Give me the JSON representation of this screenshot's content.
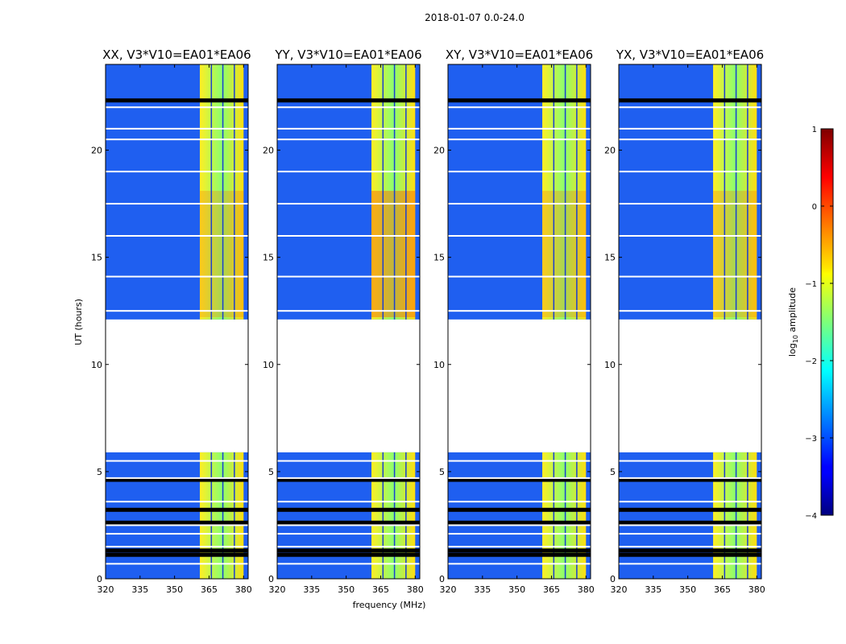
{
  "chart_data": {
    "type": "heatmap",
    "suptitle": "2018-01-07 0.0-24.0",
    "xlabel": "frequency (MHz)",
    "ylabel": "UT (hours)",
    "xlim": [
      320,
      382
    ],
    "ylim": [
      0,
      24
    ],
    "x_ticks": [
      320,
      335,
      350,
      365,
      380
    ],
    "y_ticks": [
      0,
      5,
      10,
      15,
      20
    ],
    "no_data_ut": [
      12.1,
      5.9
    ],
    "flagged_ut": [
      1.1,
      1.3,
      2.6,
      3.2,
      4.6,
      22.3
    ],
    "bright_band_mhz": [
      361,
      380
    ],
    "panels": [
      {
        "title": "XX, V3*V10=EA01*EA06",
        "pol": "XX"
      },
      {
        "title": "YY, V3*V10=EA01*EA06",
        "pol": "YY"
      },
      {
        "title": "XY, V3*V10=EA01*EA06",
        "pol": "XY"
      },
      {
        "title": "YX, V3*V10=EA01*EA06",
        "pol": "YX"
      }
    ],
    "colorbar": {
      "label": "log10 amplitude",
      "label_prefix": "log",
      "label_sub": "10",
      "label_suffix": " amplitude",
      "range": [
        -4,
        1
      ],
      "ticks": [
        "1",
        "0",
        "−1",
        "−2",
        "−3",
        "−4"
      ],
      "colormap": "jet"
    }
  }
}
